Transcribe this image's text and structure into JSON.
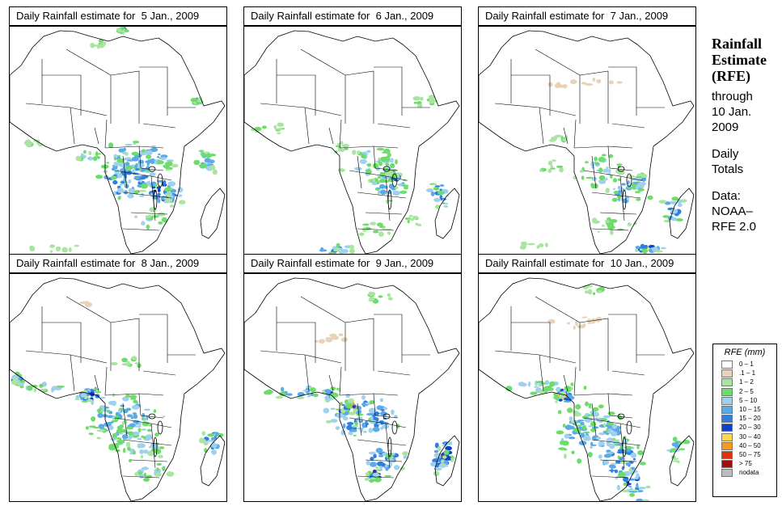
{
  "panels": [
    {
      "title": "Daily Rainfall estimate for  5 Jan., 2009",
      "day": 5
    },
    {
      "title": "Daily Rainfall estimate for  6 Jan., 2009",
      "day": 6
    },
    {
      "title": "Daily Rainfall estimate for  7 Jan., 2009",
      "day": 7
    },
    {
      "title": "Daily Rainfall estimate for  8 Jan., 2009",
      "day": 8
    },
    {
      "title": "Daily Rainfall estimate for  9 Jan., 2009",
      "day": 9
    },
    {
      "title": "Daily Rainfall estimate for  10 Jan., 2009",
      "day": 10
    }
  ],
  "side": {
    "line1": "Rainfall",
    "line2": "Estimate",
    "line3": "(RFE)",
    "line4": "through",
    "line5": "10 Jan.",
    "line6": "2009",
    "line7": "Daily",
    "line8": "Totals",
    "line9": "Data:",
    "line10": "NOAA–",
    "line11": "RFE 2.0"
  },
  "legend": {
    "title": "RFE (mm)",
    "items": [
      {
        "label": "0 – 1",
        "color": "#ffffff"
      },
      {
        "label": ".1 – 1",
        "color": "#e8d3b8"
      },
      {
        "label": "1 – 2",
        "color": "#a8e6a0"
      },
      {
        "label": "2 – 5",
        "color": "#6ddc6a"
      },
      {
        "label": "5 – 10",
        "color": "#9fd1ee"
      },
      {
        "label": "10 – 15",
        "color": "#5aaae8"
      },
      {
        "label": "15 – 20",
        "color": "#2f7fe0"
      },
      {
        "label": "20 – 30",
        "color": "#1040c8"
      },
      {
        "label": "30 – 40",
        "color": "#ffd84a"
      },
      {
        "label": "40 – 50",
        "color": "#f59a20"
      },
      {
        "label": "50 – 75",
        "color": "#e03010"
      },
      {
        "label": "> 75",
        "color": "#a01008"
      },
      {
        "label": "nodata",
        "color": "#bcbcbc"
      }
    ]
  }
}
